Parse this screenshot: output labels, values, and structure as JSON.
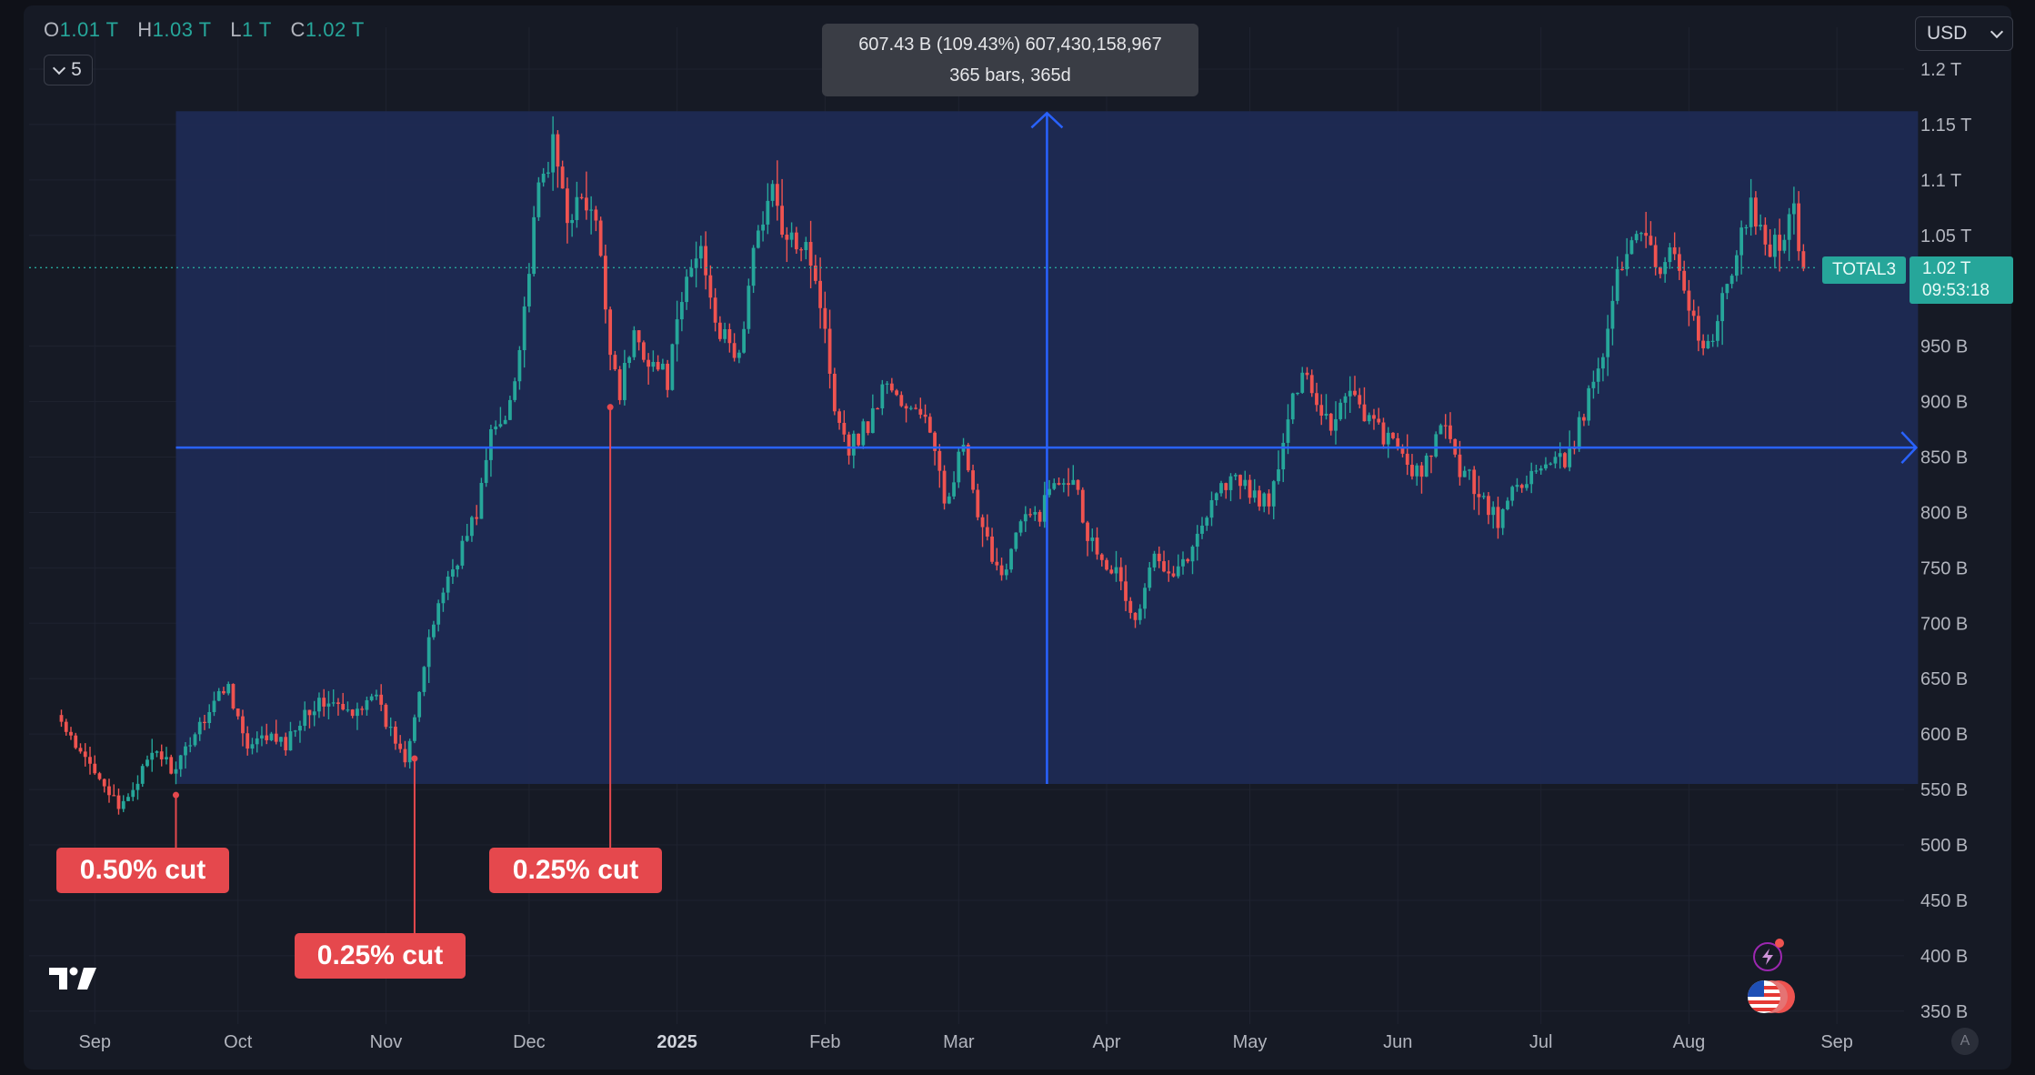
{
  "header": {
    "ohlc": [
      {
        "key": "O",
        "value": "1.01 T"
      },
      {
        "key": "H",
        "value": "1.03 T"
      },
      {
        "key": "L",
        "value": "1 T"
      },
      {
        "key": "C",
        "value": "1.02 T"
      }
    ],
    "interval_value": "5",
    "currency": "USD"
  },
  "measure_tooltip": {
    "line1": "607.43 B (109.43%) 607,430,158,967",
    "line2": "365 bars, 365d"
  },
  "price_label": {
    "symbol": "TOTAL3",
    "value": "1.02 T",
    "countdown": "09:53:18"
  },
  "annotations": [
    {
      "text": "0.50% cut",
      "date": "2024-09-18",
      "price": 545
    },
    {
      "text": "0.25% cut",
      "date": "2024-11-07",
      "price": 578
    },
    {
      "text": "0.25% cut",
      "date": "2024-12-18",
      "price": 895
    }
  ],
  "colors": {
    "up": "#26a69a",
    "down": "#ef5350",
    "measure_fill": "#1e2a55",
    "measure_line": "#2962ff",
    "annotation": "#e5484d",
    "background": "#161a25"
  },
  "icons": [
    "chevron-down-icon",
    "tradingview-logo-icon",
    "lightning-icon",
    "us-flag-icon"
  ],
  "chart_data": {
    "type": "candlestick",
    "series_symbol": "TOTAL3",
    "x_ticks": [
      "Sep",
      "Oct",
      "Nov",
      "Dec",
      "2025",
      "Feb",
      "Mar",
      "Apr",
      "May",
      "Jun",
      "Jul",
      "Aug",
      "Sep"
    ],
    "y_ticks": [
      "1.2 T",
      "1.15 T",
      "1.1 T",
      "1.05 T",
      "950 B",
      "900 B",
      "850 B",
      "800 B",
      "750 B",
      "700 B",
      "650 B",
      "600 B",
      "550 B",
      "500 B",
      "450 B",
      "400 B",
      "350 B"
    ],
    "y_unit": "B",
    "ylim": [
      330,
      1220
    ],
    "xlim": [
      "2024-08-25",
      "2025-09-15"
    ],
    "last_close": 1020,
    "measure_range": {
      "start_date": "2024-09-18",
      "end_date": "2025-09-18",
      "low": 555,
      "high": 1162,
      "change": "607.43 B (109.43%)",
      "bars": 365
    },
    "close_anchors": [
      [
        "2024-08-25",
        610
      ],
      [
        "2024-08-28",
        585
      ],
      [
        "2024-09-02",
        565
      ],
      [
        "2024-09-06",
        530
      ],
      [
        "2024-09-10",
        560
      ],
      [
        "2024-09-14",
        585
      ],
      [
        "2024-09-18",
        565
      ],
      [
        "2024-09-21",
        595
      ],
      [
        "2024-09-26",
        630
      ],
      [
        "2024-09-29",
        645
      ],
      [
        "2024-10-03",
        585
      ],
      [
        "2024-10-07",
        598
      ],
      [
        "2024-10-11",
        590
      ],
      [
        "2024-10-15",
        622
      ],
      [
        "2024-10-20",
        630
      ],
      [
        "2024-10-25",
        615
      ],
      [
        "2024-10-29",
        640
      ],
      [
        "2024-11-01",
        610
      ],
      [
        "2024-11-05",
        580
      ],
      [
        "2024-11-08",
        640
      ],
      [
        "2024-11-12",
        720
      ],
      [
        "2024-11-16",
        760
      ],
      [
        "2024-11-20",
        800
      ],
      [
        "2024-11-23",
        870
      ],
      [
        "2024-11-26",
        885
      ],
      [
        "2024-11-29",
        950
      ],
      [
        "2024-12-03",
        1090
      ],
      [
        "2024-12-06",
        1130
      ],
      [
        "2024-12-09",
        1070
      ],
      [
        "2024-12-12",
        1080
      ],
      [
        "2024-12-15",
        1060
      ],
      [
        "2024-12-18",
        950
      ],
      [
        "2024-12-20",
        910
      ],
      [
        "2024-12-23",
        960
      ],
      [
        "2024-12-26",
        940
      ],
      [
        "2024-12-30",
        920
      ],
      [
        "2025-01-03",
        1010
      ],
      [
        "2025-01-06",
        1040
      ],
      [
        "2025-01-10",
        960
      ],
      [
        "2025-01-14",
        940
      ],
      [
        "2025-01-18",
        1060
      ],
      [
        "2025-01-21",
        1090
      ],
      [
        "2025-01-24",
        1040
      ],
      [
        "2025-01-28",
        1050
      ],
      [
        "2025-01-31",
        990
      ],
      [
        "2025-02-03",
        900
      ],
      [
        "2025-02-06",
        860
      ],
      [
        "2025-02-10",
        880
      ],
      [
        "2025-02-14",
        920
      ],
      [
        "2025-02-18",
        890
      ],
      [
        "2025-02-22",
        890
      ],
      [
        "2025-02-26",
        810
      ],
      [
        "2025-03-02",
        860
      ],
      [
        "2025-03-05",
        790
      ],
      [
        "2025-03-10",
        745
      ],
      [
        "2025-03-14",
        790
      ],
      [
        "2025-03-18",
        800
      ],
      [
        "2025-03-21",
        830
      ],
      [
        "2025-03-25",
        835
      ],
      [
        "2025-03-28",
        780
      ],
      [
        "2025-04-03",
        745
      ],
      [
        "2025-04-07",
        700
      ],
      [
        "2025-04-11",
        760
      ],
      [
        "2025-04-15",
        750
      ],
      [
        "2025-04-19",
        765
      ],
      [
        "2025-04-23",
        815
      ],
      [
        "2025-04-27",
        830
      ],
      [
        "2025-05-01",
        820
      ],
      [
        "2025-05-05",
        805
      ],
      [
        "2025-05-09",
        880
      ],
      [
        "2025-05-12",
        935
      ],
      [
        "2025-05-15",
        900
      ],
      [
        "2025-05-18",
        880
      ],
      [
        "2025-05-22",
        915
      ],
      [
        "2025-05-25",
        890
      ],
      [
        "2025-05-29",
        870
      ],
      [
        "2025-06-02",
        850
      ],
      [
        "2025-06-06",
        830
      ],
      [
        "2025-06-10",
        880
      ],
      [
        "2025-06-14",
        840
      ],
      [
        "2025-06-18",
        820
      ],
      [
        "2025-06-22",
        790
      ],
      [
        "2025-06-25",
        820
      ],
      [
        "2025-06-29",
        835
      ],
      [
        "2025-07-03",
        840
      ],
      [
        "2025-07-07",
        850
      ],
      [
        "2025-07-10",
        890
      ],
      [
        "2025-07-14",
        950
      ],
      [
        "2025-07-17",
        1010
      ],
      [
        "2025-07-20",
        1050
      ],
      [
        "2025-07-23",
        1060
      ],
      [
        "2025-07-26",
        1010
      ],
      [
        "2025-07-29",
        1040
      ],
      [
        "2025-08-02",
        970
      ],
      [
        "2025-08-05",
        945
      ],
      [
        "2025-08-08",
        990
      ],
      [
        "2025-08-11",
        1030
      ],
      [
        "2025-08-14",
        1080
      ],
      [
        "2025-08-17",
        1040
      ],
      [
        "2025-08-20",
        1045
      ],
      [
        "2025-08-23",
        1070
      ],
      [
        "2025-08-25",
        1020
      ]
    ]
  }
}
